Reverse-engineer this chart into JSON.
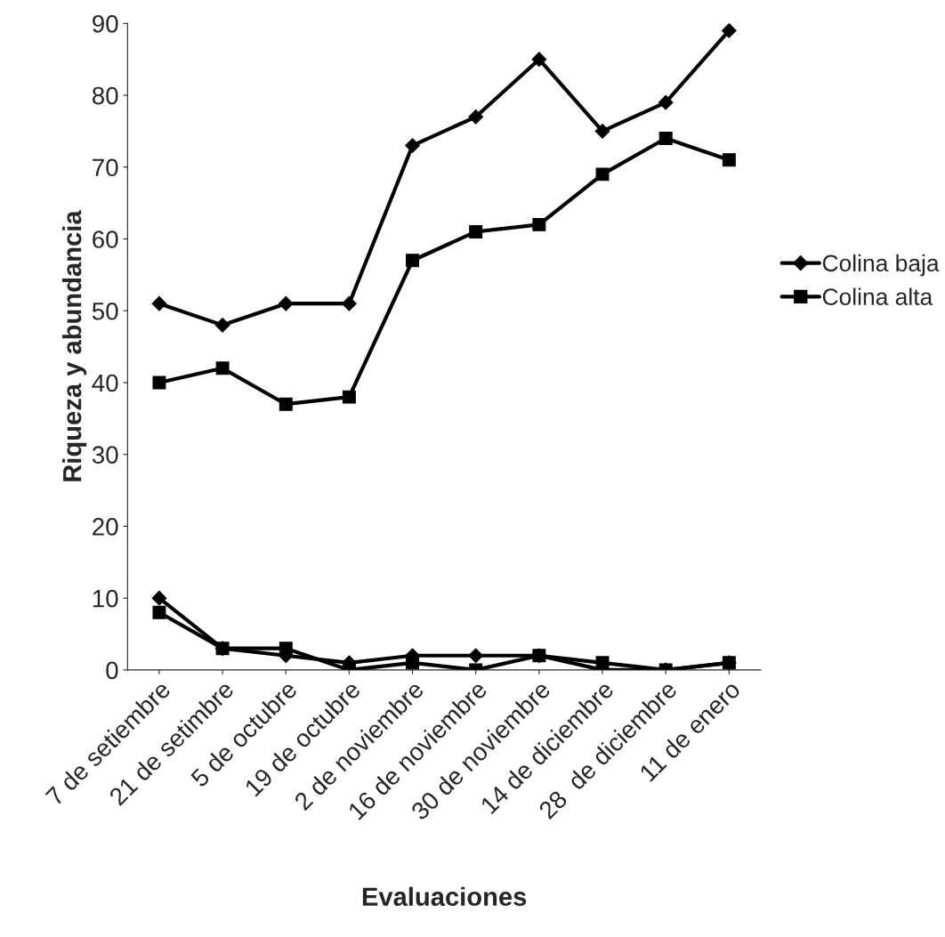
{
  "chart_data": {
    "type": "line",
    "xlabel": "Evaluaciones",
    "ylabel": "Riqueza y abundancia",
    "categories": [
      "7 de setiembre",
      "21 de setimbre",
      "5 de octubre",
      "19 de octubre",
      "2 de noviembre",
      "16 de noviembre",
      "30 de noviembre",
      "14 de diciembre",
      "28  de diciembre",
      "11 de enero"
    ],
    "series": [
      {
        "name": "Colina baja",
        "color": "#000000",
        "marker": "diamond",
        "values": [
          51,
          48,
          51,
          51,
          73,
          77,
          85,
          75,
          79,
          89
        ]
      },
      {
        "name": "Colina alta",
        "color": "#000000",
        "marker": "square",
        "values": [
          40,
          42,
          37,
          38,
          57,
          61,
          62,
          69,
          74,
          71
        ]
      },
      {
        "color": "#000000",
        "marker": "diamond",
        "values": [
          10,
          3,
          2,
          1,
          2,
          2,
          2,
          0,
          0,
          1
        ]
      },
      {
        "color": "#000000",
        "marker": "square",
        "values": [
          8,
          3,
          3,
          0,
          1,
          0,
          2,
          1,
          0,
          1
        ]
      }
    ],
    "ylim": [
      0,
      90
    ],
    "yticks": [
      0,
      10,
      20,
      30,
      40,
      50,
      60,
      70,
      80,
      90
    ],
    "grid": false,
    "legend": "right"
  }
}
